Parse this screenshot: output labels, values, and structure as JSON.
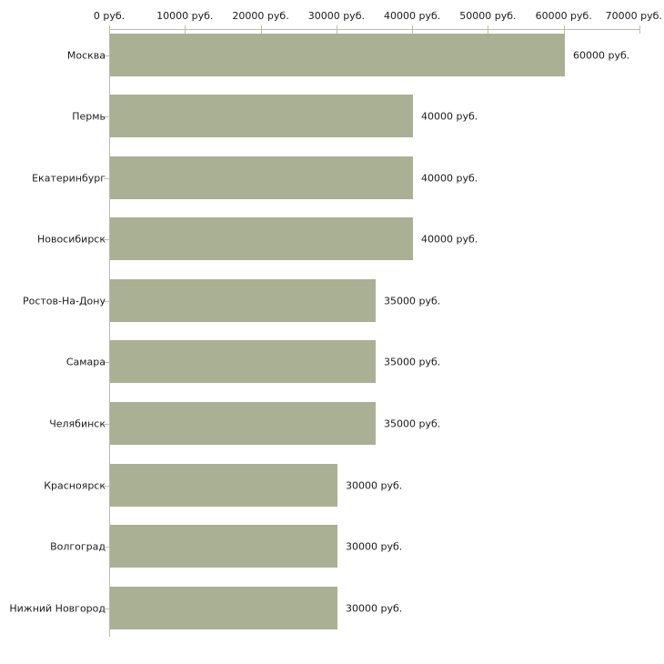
{
  "chart_data": {
    "type": "bar",
    "orientation": "horizontal",
    "title": "",
    "xlabel": "",
    "ylabel": "",
    "categories": [
      "Москва",
      "Пермь",
      "Екатеринбург",
      "Новосибирск",
      "Ростов-На-Дону",
      "Самара",
      "Челябинск",
      "Красноярск",
      "Волгоград",
      "Нижний Новгород"
    ],
    "values": [
      60000,
      40000,
      40000,
      40000,
      35000,
      35000,
      35000,
      30000,
      30000,
      30000
    ],
    "value_labels": [
      "60000 руб.",
      "40000 руб.",
      "40000 руб.",
      "40000 руб.",
      "35000 руб.",
      "35000 руб.",
      "35000 руб.",
      "30000 руб.",
      "30000 руб.",
      "30000 руб."
    ],
    "x_ticks": [
      0,
      10000,
      20000,
      30000,
      40000,
      50000,
      60000,
      70000
    ],
    "x_tick_labels": [
      "0 руб.",
      "10000 руб.",
      "20000 руб.",
      "30000 руб.",
      "40000 руб.",
      "50000 руб.",
      "60000 руб.",
      "70000 руб."
    ],
    "xlim": [
      0,
      70000
    ],
    "unit": "руб.",
    "grid": false,
    "legend": false,
    "colors": {
      "bar": "#aab094",
      "axis": "#b9b9b9",
      "tick": "#c2c296",
      "text": "#1c1c1c",
      "background": "#ffffff"
    }
  }
}
